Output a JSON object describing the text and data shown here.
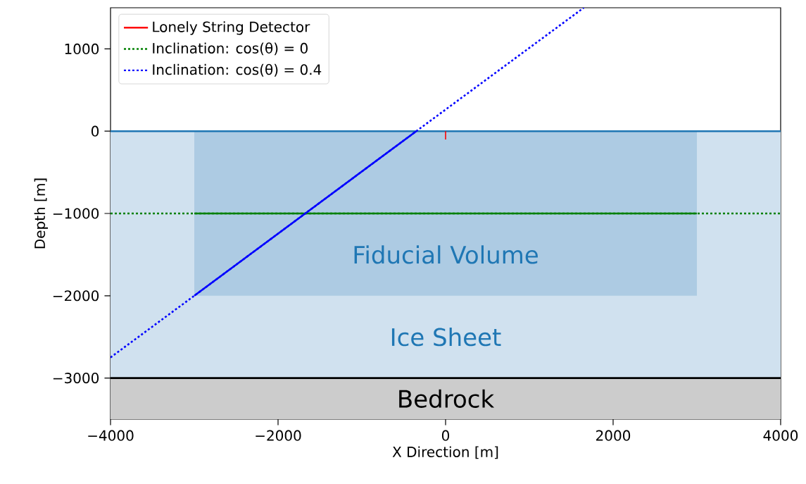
{
  "chart_data": {
    "type": "line",
    "xlabel": "X Direction [m]",
    "ylabel": "Depth [m]",
    "xlim": [
      -4000,
      4000
    ],
    "ylim": [
      -3500,
      1500
    ],
    "xticks": [
      {
        "value": -4000,
        "label": "−4000"
      },
      {
        "value": -2000,
        "label": "−2000"
      },
      0,
      2000,
      4000
    ],
    "yticks": [
      {
        "value": -3000,
        "label": "−3000"
      },
      {
        "value": -2000,
        "label": "−2000"
      },
      {
        "value": -1000,
        "label": "−1000"
      },
      0,
      1000
    ],
    "grid": false,
    "legend": "top left",
    "marker": "none",
    "bands": [
      {
        "axis": "y",
        "from": -3000,
        "to": 0,
        "label": "Ice Sheet",
        "color": "#d0e1ef"
      },
      {
        "axis": "y",
        "from": -3500,
        "to": -3000,
        "label": "Bedrock",
        "color": "#cccccc"
      }
    ],
    "ref_lines": [
      {
        "axis": "y",
        "value": 0,
        "color": "#1f77b4",
        "line_style": "solid"
      },
      {
        "axis": "y",
        "value": -3000,
        "color": "#000000",
        "line_style": "solid"
      }
    ],
    "annotations": [
      "Fiducial Volume"
    ],
    "series": [
      {
        "type": "area",
        "color": "#adcbe3",
        "x": [
          -3000,
          3000
        ],
        "values": [
          -2000,
          -2000
        ]
      },
      {
        "name": "Lonely String Detector",
        "color": "#ff0000",
        "line_style": "solid",
        "x": [
          0,
          0
        ],
        "values": [
          0,
          -100
        ]
      },
      {
        "name": "Inclination: cos(θ) = 0",
        "color": "#008000",
        "line_style": "dotted",
        "x": [
          -4000,
          4000
        ],
        "values": [
          -1000,
          -1000
        ]
      },
      {
        "name": "Inclination: cos(θ) = 0.4",
        "color": "#0000ff",
        "line_style": "dotted",
        "x": [
          -4000,
          -3000,
          -350,
          1650
        ],
        "values": [
          -2750,
          -2000,
          0,
          1500
        ]
      },
      {
        "color": "#008000",
        "line_style": "solid",
        "x": [
          -3000,
          3000
        ],
        "values": [
          -1000,
          -1000
        ]
      },
      {
        "color": "#0000ff",
        "line_style": "solid",
        "x": [
          -3000,
          -350
        ],
        "values": [
          -2000,
          0
        ]
      }
    ]
  }
}
